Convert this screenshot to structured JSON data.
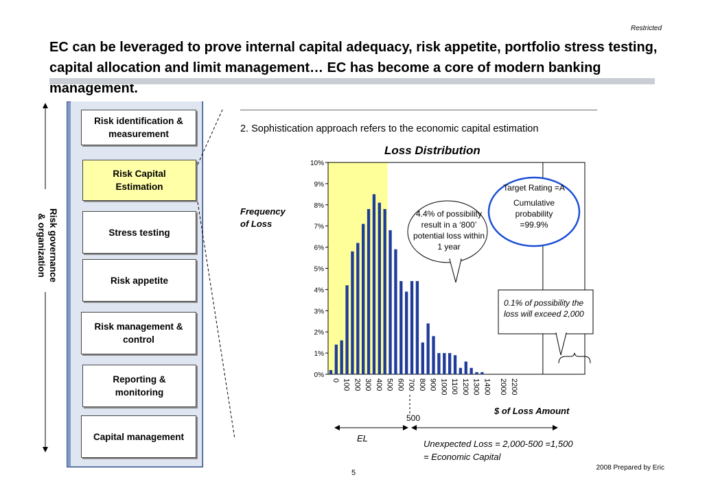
{
  "header": {
    "restricted": "Restricted",
    "title": "EC can be leveraged to prove internal capital adequacy, risk appetite, portfolio stress testing, capital allocation and limit management… EC has become a core of modern banking management."
  },
  "sidebar": {
    "vertical_label_line1": "Risk governance",
    "vertical_label_line2": "& organization",
    "boxes": [
      {
        "label": "Risk identification & measurement",
        "highlight": false
      },
      {
        "label": "Risk Capital Estimation",
        "highlight": true
      },
      {
        "label": "Stress testing",
        "highlight": false
      },
      {
        "label": "Risk appetite",
        "highlight": false
      },
      {
        "label": "Risk management & control",
        "highlight": false
      },
      {
        "label": "Reporting & monitoring",
        "highlight": false
      },
      {
        "label": "Capital management",
        "highlight": false
      }
    ]
  },
  "main": {
    "subtitle": "2. Sophistication approach refers to the economic capital estimation",
    "ylabel_line1": "Frequency",
    "ylabel_line2": "of Loss",
    "callout_mid": "4.4% of possibility result in a ‘800’ potential loss within 1 year",
    "callout_rating_line1": "Target Rating =A",
    "callout_rating_line2": "Cumulative probability =99.9%",
    "callout_tail": "0.1% of possibility the loss will exceed 2,000",
    "mark_500": "500",
    "el_label": "EL",
    "ul_line1": "Unexpected Loss = 2,000-500 =1,500",
    "ul_line2": "= Economic Capital"
  },
  "footer": {
    "page": "5",
    "prepared": "2008 Prepared by Eric"
  },
  "colors": {
    "bar": "#1f3c99",
    "expected_region": "#ffff99",
    "sidebar": "#7f99c8"
  },
  "chart_data": {
    "type": "bar",
    "title": "Loss Distribution",
    "xlabel": "$ of Loss Amount",
    "ylabel": "Frequency of Loss",
    "ylim": [
      0,
      10
    ],
    "yticks": [
      "0%",
      "1%",
      "2%",
      "3%",
      "4%",
      "5%",
      "6%",
      "7%",
      "8%",
      "9%",
      "10%"
    ],
    "xticks": [
      "0",
      "100",
      "200",
      "300",
      "400",
      "500",
      "600",
      "700",
      "800",
      "900",
      "1000",
      "1100",
      "1200",
      "1300",
      "1400",
      "2000",
      "2200"
    ],
    "series": [
      {
        "x": 0,
        "y": 0.2
      },
      {
        "x": 50,
        "y": 1.4
      },
      {
        "x": 100,
        "y": 1.6
      },
      {
        "x": 150,
        "y": 4.2
      },
      {
        "x": 200,
        "y": 5.8
      },
      {
        "x": 250,
        "y": 6.2
      },
      {
        "x": 300,
        "y": 7.1
      },
      {
        "x": 350,
        "y": 7.8
      },
      {
        "x": 400,
        "y": 8.5
      },
      {
        "x": 450,
        "y": 8.1
      },
      {
        "x": 500,
        "y": 7.8
      },
      {
        "x": 550,
        "y": 6.8
      },
      {
        "x": 600,
        "y": 5.9
      },
      {
        "x": 650,
        "y": 4.4
      },
      {
        "x": 700,
        "y": 3.9
      },
      {
        "x": 750,
        "y": 4.4
      },
      {
        "x": 800,
        "y": 4.4
      },
      {
        "x": 850,
        "y": 1.5
      },
      {
        "x": 900,
        "y": 2.4
      },
      {
        "x": 950,
        "y": 1.8
      },
      {
        "x": 1000,
        "y": 1.0
      },
      {
        "x": 1050,
        "y": 1.0
      },
      {
        "x": 1100,
        "y": 1.0
      },
      {
        "x": 1150,
        "y": 0.9
      },
      {
        "x": 1200,
        "y": 0.3
      },
      {
        "x": 1250,
        "y": 0.6
      },
      {
        "x": 1300,
        "y": 0.3
      },
      {
        "x": 1350,
        "y": 0.1
      },
      {
        "x": 1400,
        "y": 0.1
      }
    ],
    "expected_loss_boundary": 500
  }
}
